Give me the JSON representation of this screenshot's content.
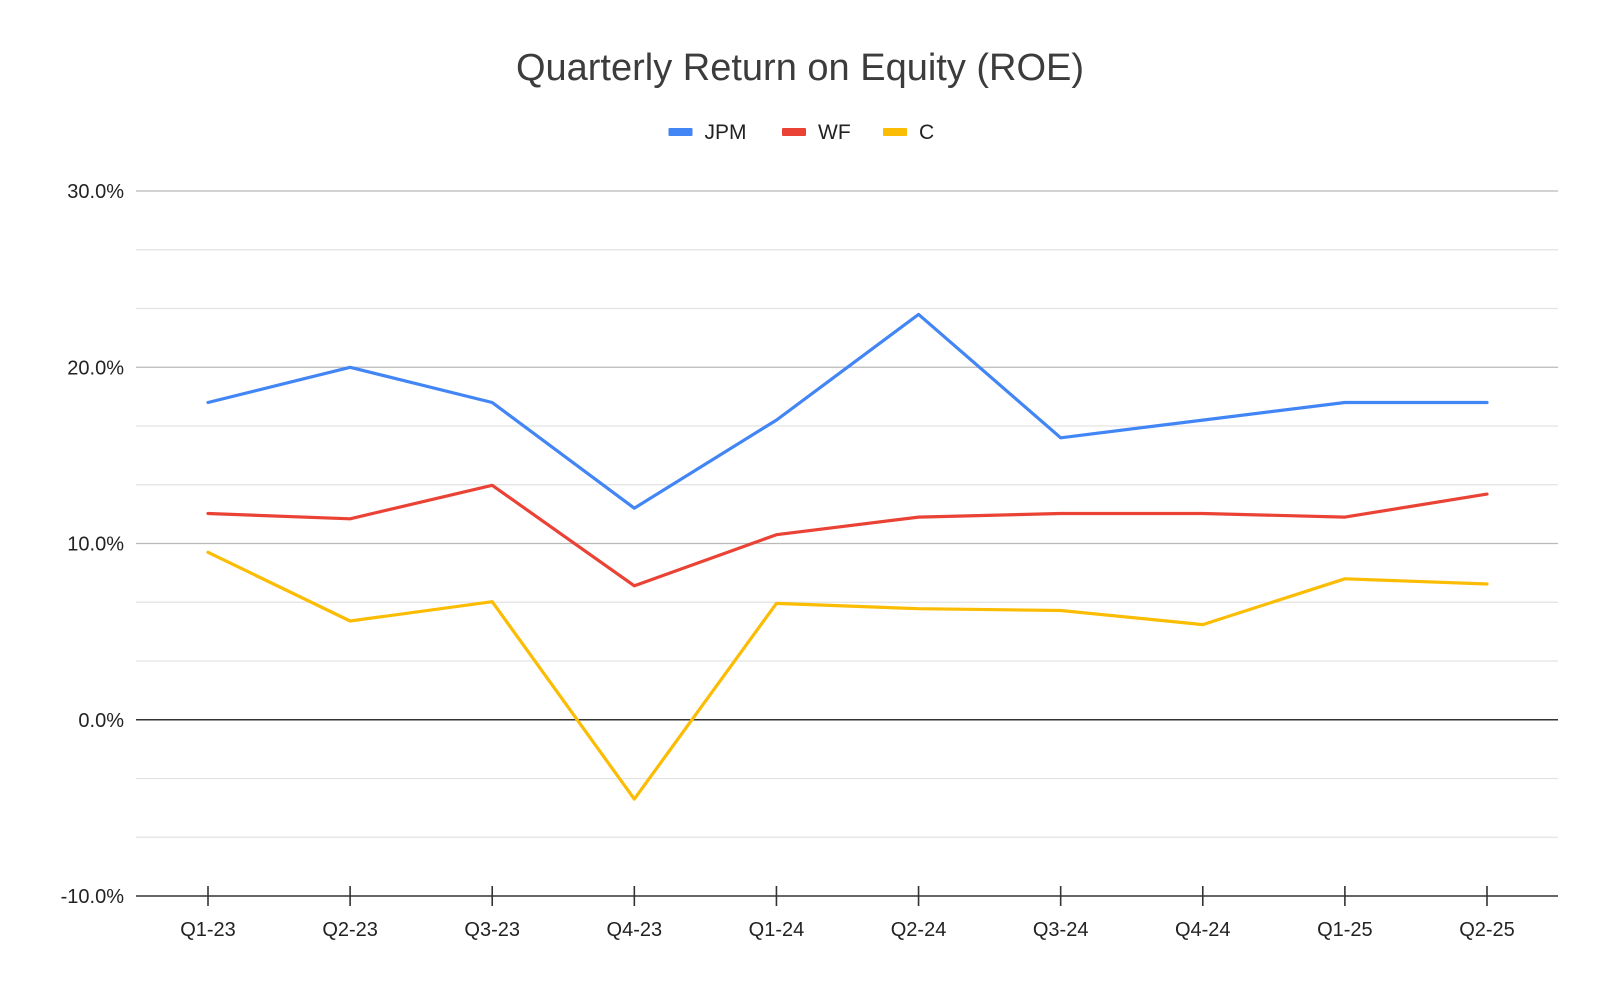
{
  "chart_data": {
    "type": "line",
    "title": "Quarterly Return on Equity (ROE)",
    "categories": [
      "Q1-23",
      "Q2-23",
      "Q3-23",
      "Q4-23",
      "Q1-24",
      "Q2-24",
      "Q3-24",
      "Q4-24",
      "Q1-25",
      "Q2-25"
    ],
    "series": [
      {
        "name": "JPM",
        "color": "#4285f4",
        "values": [
          18.0,
          20.0,
          18.0,
          12.0,
          17.0,
          23.0,
          16.0,
          17.0,
          18.0,
          18.0
        ]
      },
      {
        "name": "WF",
        "color": "#ea4335",
        "values": [
          11.7,
          11.4,
          13.3,
          7.6,
          10.5,
          11.5,
          11.7,
          11.7,
          11.5,
          12.8
        ]
      },
      {
        "name": "C",
        "color": "#fbbc04",
        "values": [
          9.5,
          5.6,
          6.7,
          -4.5,
          6.6,
          6.3,
          6.2,
          5.4,
          8.0,
          7.7
        ]
      }
    ],
    "ylim": [
      -10,
      30
    ],
    "y_ticks": [
      {
        "value": -10,
        "label": "-10.0%"
      },
      {
        "value": 0,
        "label": "0.0%"
      },
      {
        "value": 10,
        "label": "10.0%"
      },
      {
        "value": 20,
        "label": "20.0%"
      },
      {
        "value": 30,
        "label": "30.0%"
      }
    ],
    "y_minor_step": 3.3333,
    "grid": true,
    "legend_position": "top-center",
    "xlabel": "",
    "ylabel": ""
  }
}
